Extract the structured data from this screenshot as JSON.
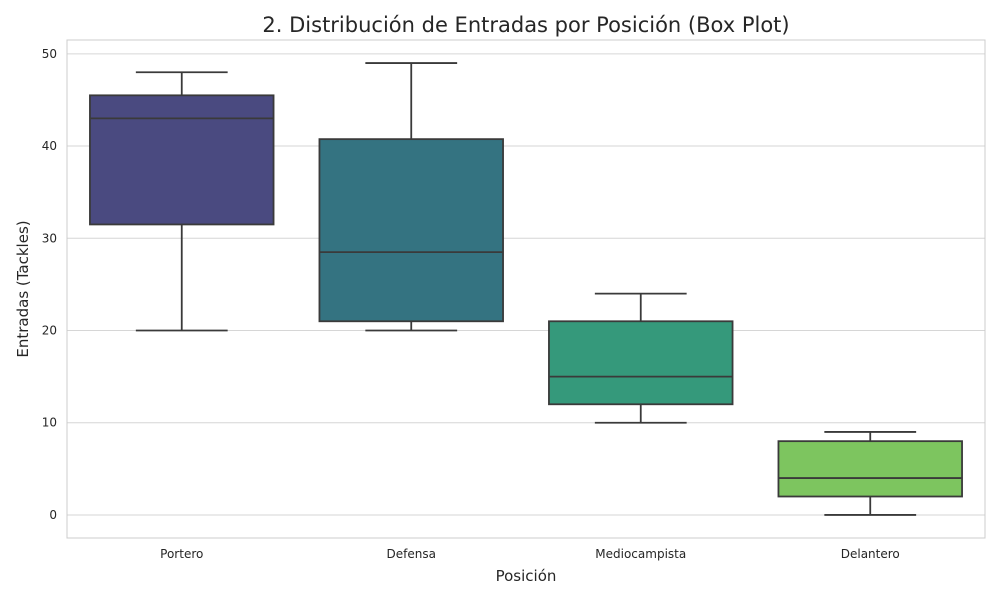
{
  "chart_data": {
    "type": "box",
    "title": "2. Distribución de Entradas por Posición (Box Plot)",
    "xlabel": "Posición",
    "ylabel": "Entradas (Tackles)",
    "ylim": [
      -2.5,
      51.5
    ],
    "yticks": [
      0,
      10,
      20,
      30,
      40,
      50
    ],
    "grid": true,
    "categories": [
      "Portero",
      "Defensa",
      "Mediocampista",
      "Delantero"
    ],
    "series": [
      {
        "category": "Portero",
        "whisker_low": 20,
        "q1": 31.5,
        "median": 43,
        "q3": 45.5,
        "whisker_high": 48,
        "color": "#4a4a80"
      },
      {
        "category": "Defensa",
        "whisker_low": 20,
        "q1": 21,
        "median": 28.5,
        "q3": 40.75,
        "whisker_high": 49,
        "color": "#347381"
      },
      {
        "category": "Mediocampista",
        "whisker_low": 10,
        "q1": 12,
        "median": 15,
        "q3": 21,
        "whisker_high": 24,
        "color": "#35997b"
      },
      {
        "category": "Delantero",
        "whisker_low": 0,
        "q1": 2,
        "median": 4,
        "q3": 8,
        "whisker_high": 9,
        "color": "#7dc55f"
      }
    ]
  }
}
